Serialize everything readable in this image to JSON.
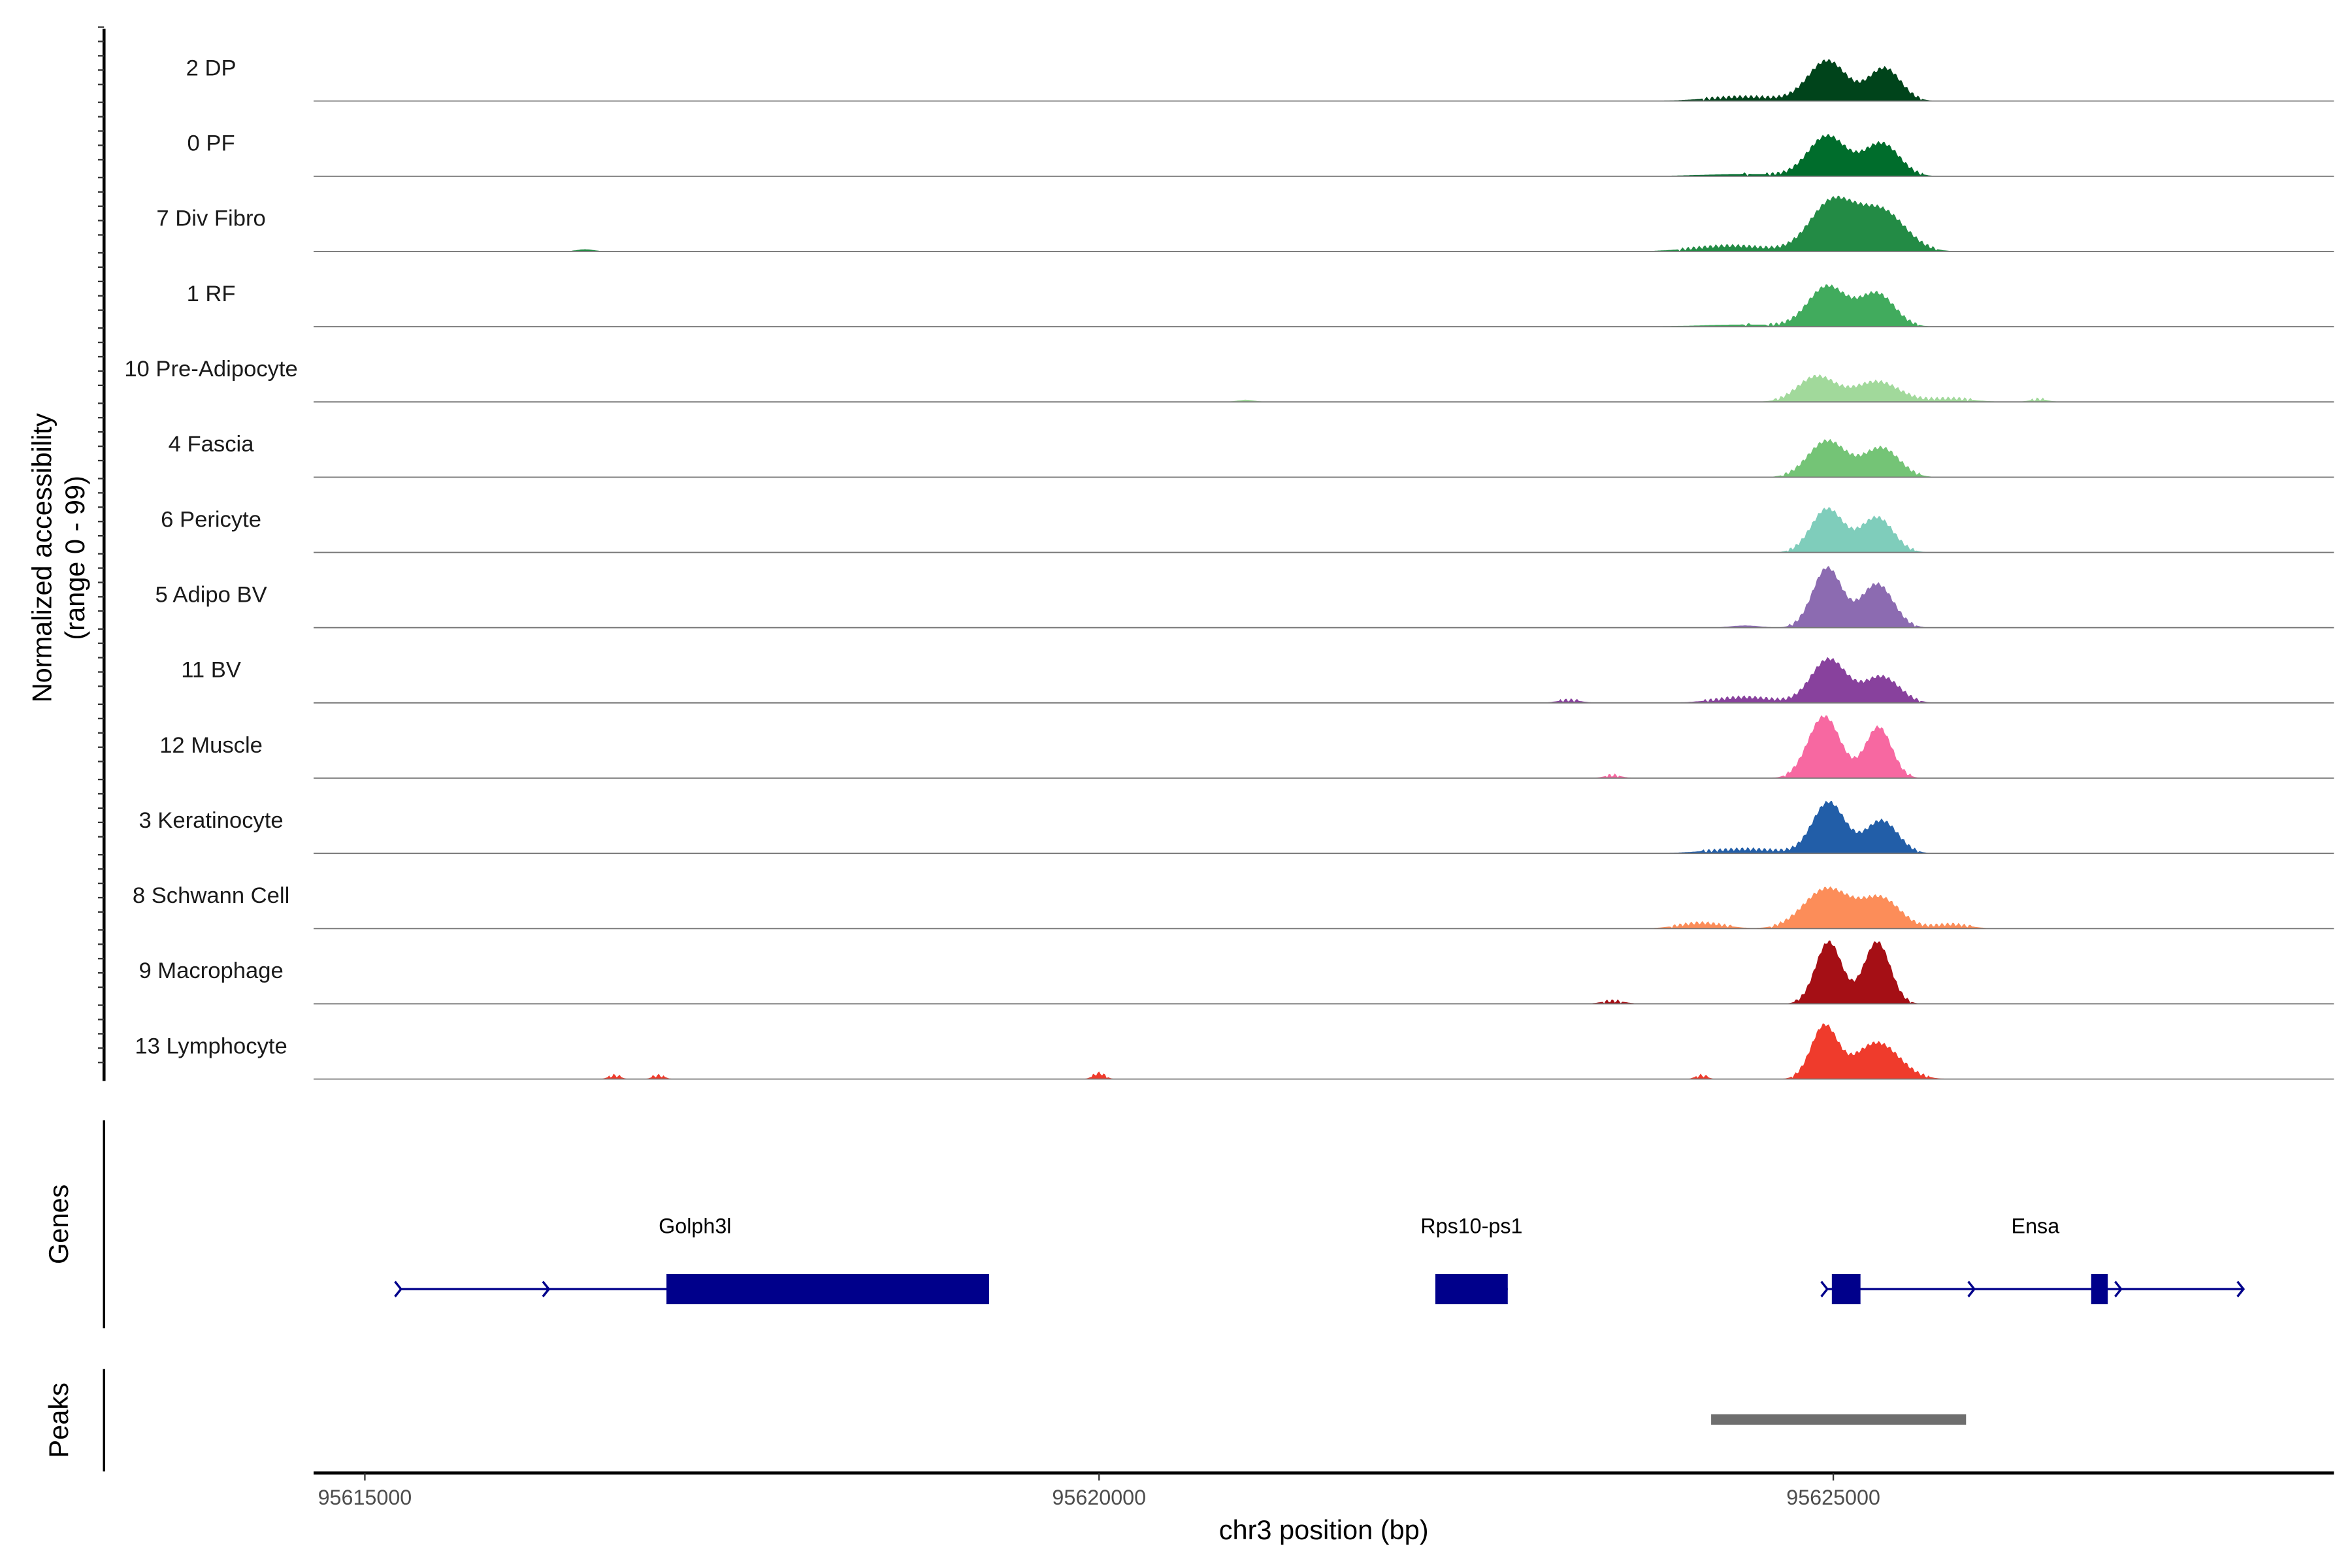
{
  "chart_data": {
    "type": "area",
    "title": "",
    "ylabel": "Normalized accessibility",
    "ylabel_sub": "(range 0 - 99)",
    "ylim": [
      0,
      99
    ],
    "xlabel": "chr3 position (bp)",
    "xlim": [
      95614651,
      95628409
    ],
    "xticks": [
      95615000,
      95620000,
      95625000
    ],
    "xtick_labels": [
      "95615000",
      "95620000",
      "95625000"
    ],
    "tracks": [
      {
        "name": "2 DP",
        "color": "#00441b",
        "peaks": [
          [
            95624959,
            55,
            130
          ],
          [
            95625349,
            45,
            110
          ],
          [
            95624400,
            6,
            250
          ]
        ]
      },
      {
        "name": "0 PF",
        "color": "#006d2c",
        "peaks": [
          [
            95624959,
            55,
            130
          ],
          [
            95625329,
            45,
            120
          ],
          [
            95624400,
            3,
            300
          ]
        ]
      },
      {
        "name": "7 Div Fibro",
        "color": "#238b45",
        "peaks": [
          [
            95624990,
            67,
            150
          ],
          [
            95625329,
            55,
            160
          ],
          [
            95624300,
            8,
            250
          ],
          [
            95616500,
            3,
            60
          ]
        ]
      },
      {
        "name": "1 RF",
        "color": "#41ab5d",
        "peaks": [
          [
            95624959,
            55,
            130
          ],
          [
            95625298,
            45,
            120
          ],
          [
            95624400,
            3,
            300
          ]
        ]
      },
      {
        "name": "10 Pre-Adipocyte",
        "color": "#a1d99b",
        "peaks": [
          [
            95624887,
            35,
            130
          ],
          [
            95625298,
            28,
            150
          ],
          [
            95625800,
            5,
            150
          ],
          [
            95626400,
            4,
            60
          ],
          [
            95621000,
            3,
            60
          ]
        ]
      },
      {
        "name": "4 Fascia",
        "color": "#74c476",
        "peaks": [
          [
            95624959,
            50,
            130
          ],
          [
            95625329,
            40,
            120
          ]
        ]
      },
      {
        "name": "6 Pericyte",
        "color": "#7fcdbb",
        "peaks": [
          [
            95624959,
            60,
            110
          ],
          [
            95625298,
            48,
            110
          ]
        ]
      },
      {
        "name": "5 Adipo BV",
        "color": "#8c6bb1",
        "peaks": [
          [
            95624959,
            82,
            100
          ],
          [
            95625298,
            60,
            110
          ],
          [
            95624400,
            3,
            100
          ]
        ]
      },
      {
        "name": "11 BV",
        "color": "#88419d",
        "peaks": [
          [
            95624969,
            60,
            120
          ],
          [
            95625329,
            36,
            120
          ],
          [
            95624400,
            8,
            200
          ],
          [
            95623200,
            4,
            80
          ]
        ]
      },
      {
        "name": "12 Muscle",
        "color": "#f768a1",
        "peaks": [
          [
            95624938,
            85,
            110
          ],
          [
            95625308,
            70,
            90
          ],
          [
            95623500,
            4,
            60
          ]
        ]
      },
      {
        "name": "3 Keratinocyte",
        "color": "#225ea8",
        "peaks": [
          [
            95624969,
            70,
            110
          ],
          [
            95625329,
            45,
            110
          ],
          [
            95624400,
            6,
            250
          ]
        ]
      },
      {
        "name": "8 Schwann Cell",
        "color": "#fc8d59",
        "peaks": [
          [
            95624959,
            55,
            160
          ],
          [
            95625329,
            40,
            130
          ],
          [
            95624100,
            8,
            150
          ],
          [
            95625800,
            6,
            120
          ]
        ]
      },
      {
        "name": "9 Macrophage",
        "color": "#a50f15",
        "peaks": [
          [
            95624969,
            85,
            90
          ],
          [
            95625298,
            85,
            90
          ],
          [
            95623500,
            4,
            80
          ]
        ]
      },
      {
        "name": "13 Lymphocyte",
        "color": "#ef3b2c",
        "peaks": [
          [
            95624938,
            72,
            90
          ],
          [
            95625298,
            50,
            150
          ],
          [
            95620000,
            8,
            40
          ],
          [
            95616700,
            5,
            40
          ],
          [
            95617000,
            5,
            40
          ],
          [
            95624100,
            5,
            40
          ]
        ]
      }
    ],
    "genes": {
      "axis_label": "Genes",
      "color": "#00008b",
      "items": [
        {
          "name": "Golph3l",
          "start": 95615246,
          "end": 95619251,
          "exons": [
            [
              95617054,
              95619251
            ]
          ],
          "arrows": [
            95615246,
            95616253
          ]
        },
        {
          "name": "Rps10-ps1",
          "start": 95622290,
          "end": 95622783,
          "exons": [
            [
              95622290,
              95622783
            ]
          ],
          "arrows": []
        },
        {
          "name": "Ensa",
          "start": 95624959,
          "end": 95627793,
          "exons": [
            [
              95624990,
              95625185
            ],
            [
              95626756,
              95626869
            ]
          ],
          "arrows": [
            95624959,
            95625960,
            95626960,
            95627793
          ]
        }
      ]
    },
    "peaks_track": {
      "axis_label": "Peaks",
      "color": "#6e6e6e",
      "items": [
        [
          95624168,
          95625904
        ]
      ]
    }
  }
}
